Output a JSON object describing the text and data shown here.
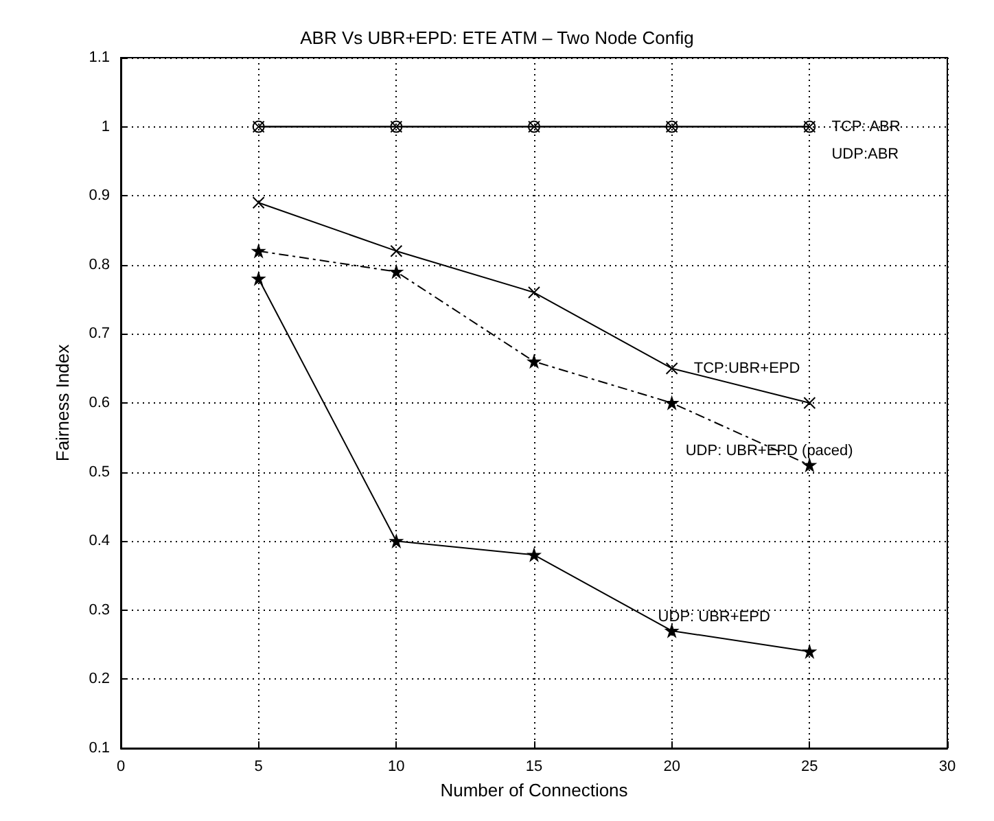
{
  "chart_data": {
    "type": "line",
    "title": "ABR Vs UBR+EPD: ETE ATM – Two Node Config",
    "xlabel": "Number of Connections",
    "ylabel": "Fairness Index",
    "x": [
      5,
      10,
      15,
      20,
      25
    ],
    "series": [
      {
        "name": "TCP: ABR",
        "color": "#000000",
        "values": [
          1,
          1,
          1,
          1,
          1
        ],
        "marker": "circle",
        "line_style": "solid"
      },
      {
        "name": "UDP:ABR",
        "color": "#000000",
        "values": [
          1,
          1,
          1,
          1,
          1
        ],
        "marker": "cross",
        "line_style": "solid"
      },
      {
        "name": "TCP:UBR+EPD",
        "color": "#000000",
        "values": [
          0.89,
          0.82,
          0.76,
          0.65,
          0.6
        ],
        "marker": "cross",
        "line_style": "solid"
      },
      {
        "name": "UDP: UBR+EPD (paced)",
        "color": "#000000",
        "values": [
          0.82,
          0.79,
          0.66,
          0.6,
          0.51
        ],
        "marker": "star",
        "line_style": "dashed"
      },
      {
        "name": "UDP: UBR+EPD",
        "color": "#000000",
        "values": [
          0.78,
          0.4,
          0.38,
          0.27,
          0.24
        ],
        "marker": "star",
        "line_style": "solid"
      }
    ],
    "xlim": [
      0,
      30
    ],
    "xticks": [
      0,
      5,
      10,
      15,
      20,
      25,
      30
    ],
    "ylim": [
      0.1,
      1.1
    ],
    "yticks": [
      0.1,
      0.2,
      0.3,
      0.4,
      0.5,
      0.6,
      0.7,
      0.8,
      0.9,
      1,
      1.1
    ],
    "grid": true,
    "legend": false
  }
}
